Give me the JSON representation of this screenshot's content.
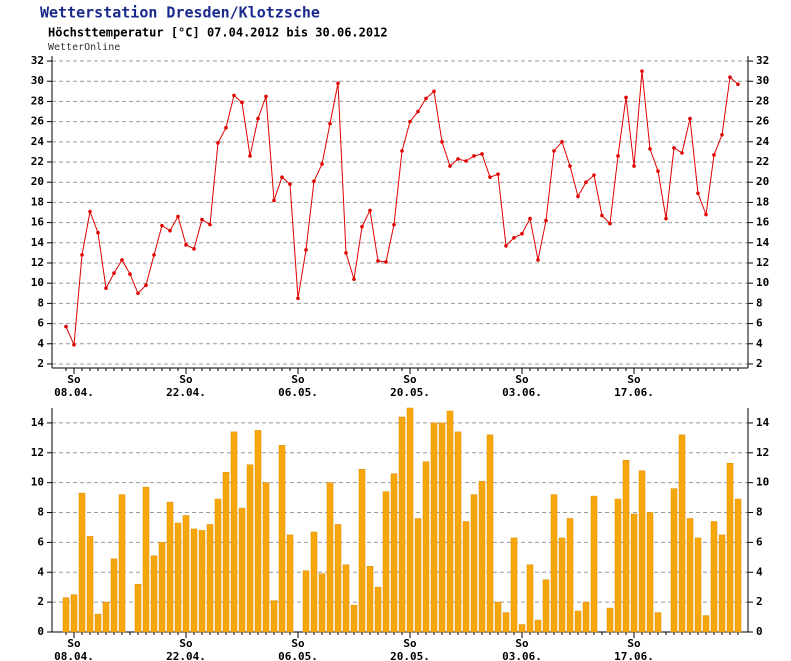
{
  "chart_data": [
    {
      "type": "line",
      "title": "Wetterstation Dresden/Klotzsche",
      "subtitle": "Höchsttemperatur [°C] 07.04.2012 bis 30.06.2012",
      "source": "WetterOnline",
      "weekday_label": "So",
      "categories": [
        null,
        "08.04.",
        null,
        null,
        null,
        null,
        null,
        null,
        null,
        null,
        null,
        null,
        null,
        null,
        null,
        "22.04.",
        null,
        null,
        null,
        null,
        null,
        null,
        null,
        null,
        null,
        null,
        null,
        null,
        null,
        "06.05.",
        null,
        null,
        null,
        null,
        null,
        null,
        null,
        null,
        null,
        null,
        null,
        null,
        null,
        "20.05.",
        null,
        null,
        null,
        null,
        null,
        null,
        null,
        null,
        null,
        null,
        null,
        null,
        null,
        "03.06.",
        null,
        null,
        null,
        null,
        null,
        null,
        null,
        null,
        null,
        null,
        null,
        null,
        null,
        "17.06.",
        null,
        null,
        null,
        null,
        null,
        null,
        null,
        null,
        null,
        null,
        null,
        null,
        null
      ],
      "color": "#e00000",
      "values": [
        5.7,
        3.9,
        12.8,
        17.1,
        15.0,
        9.5,
        11.0,
        12.3,
        10.9,
        9.0,
        9.8,
        12.8,
        15.7,
        15.2,
        16.6,
        13.8,
        13.4,
        16.3,
        15.8,
        23.9,
        25.4,
        28.6,
        27.9,
        22.6,
        26.3,
        28.5,
        18.2,
        20.5,
        19.8,
        8.5,
        13.3,
        20.1,
        21.8,
        25.8,
        29.8,
        13.0,
        10.4,
        15.6,
        17.2,
        12.2,
        12.1,
        15.8,
        23.1,
        26.0,
        27.0,
        28.3,
        29.0,
        24.0,
        21.6,
        22.3,
        22.1,
        22.6,
        22.8,
        20.5,
        20.8,
        13.7,
        14.5,
        14.9,
        16.4,
        12.3,
        16.2,
        23.1,
        24.0,
        21.6,
        18.6,
        20.0,
        20.7,
        16.7,
        15.9,
        22.6,
        28.4,
        21.6,
        31.0,
        23.3,
        21.1,
        16.4,
        23.4,
        22.9,
        26.3,
        18.9,
        16.8,
        22.7,
        24.7,
        30.4,
        29.7
      ],
      "ylim": [
        1.6,
        32.5
      ],
      "yticks": [
        2,
        4,
        6,
        8,
        10,
        12,
        14,
        16,
        18,
        20,
        22,
        24,
        26,
        28,
        30,
        32
      ],
      "grid": true
    },
    {
      "type": "bar",
      "weekday_label": "So",
      "categories": [
        null,
        "08.04.",
        null,
        null,
        null,
        null,
        null,
        null,
        null,
        null,
        null,
        null,
        null,
        null,
        null,
        "22.04.",
        null,
        null,
        null,
        null,
        null,
        null,
        null,
        null,
        null,
        null,
        null,
        null,
        null,
        "06.05.",
        null,
        null,
        null,
        null,
        null,
        null,
        null,
        null,
        null,
        null,
        null,
        null,
        null,
        "20.05.",
        null,
        null,
        null,
        null,
        null,
        null,
        null,
        null,
        null,
        null,
        null,
        null,
        null,
        "03.06.",
        null,
        null,
        null,
        null,
        null,
        null,
        null,
        null,
        null,
        null,
        null,
        null,
        null,
        "17.06.",
        null,
        null,
        null,
        null,
        null,
        null,
        null,
        null,
        null,
        null,
        null,
        null,
        null
      ],
      "color": "#f7a70c",
      "values": [
        2.3,
        2.5,
        9.3,
        6.4,
        1.2,
        2.0,
        4.9,
        9.2,
        0,
        3.2,
        9.7,
        5.1,
        6.0,
        8.7,
        7.3,
        7.8,
        6.9,
        6.8,
        7.2,
        8.9,
        10.7,
        13.4,
        8.3,
        11.2,
        13.5,
        10.0,
        2.1,
        12.5,
        6.5,
        0,
        4.1,
        6.7,
        3.9,
        10.0,
        7.2,
        4.5,
        1.8,
        10.9,
        4.4,
        3.0,
        9.4,
        10.6,
        14.4,
        15.0,
        7.6,
        11.4,
        14.0,
        14.0,
        14.8,
        13.4,
        7.4,
        9.2,
        10.1,
        13.2,
        2.0,
        1.3,
        6.3,
        0.5,
        4.5,
        0.8,
        3.5,
        9.2,
        6.3,
        7.6,
        1.4,
        2.0,
        9.1,
        0,
        1.6,
        8.9,
        11.5,
        7.9,
        10.8,
        8.0,
        1.3,
        0,
        9.6,
        13.2,
        7.6,
        6.3,
        1.1,
        7.4,
        6.5,
        11.3,
        8.9
      ],
      "ylim": [
        0,
        15
      ],
      "yticks": [
        0,
        2,
        4,
        6,
        8,
        10,
        12,
        14
      ],
      "grid": true
    }
  ]
}
